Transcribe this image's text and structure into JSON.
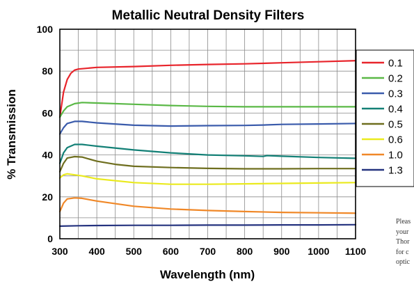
{
  "chart_data": {
    "type": "line",
    "title": "Metallic Neutral Density Filters",
    "xlabel": "Wavelength (nm)",
    "ylabel": "% Transmission",
    "xlim": [
      300,
      1100
    ],
    "ylim": [
      0,
      100
    ],
    "xticks": [
      300,
      400,
      500,
      600,
      700,
      800,
      900,
      1000,
      1100
    ],
    "yticks": [
      0,
      20,
      40,
      60,
      80,
      100
    ],
    "x_minor_step": 50,
    "y_minor_step": 10,
    "grid": true,
    "legend_position": "right",
    "series": [
      {
        "name": "0.1",
        "color": "#e8242b",
        "points": [
          [
            300,
            58
          ],
          [
            310,
            70
          ],
          [
            320,
            76
          ],
          [
            330,
            79
          ],
          [
            340,
            80.5
          ],
          [
            350,
            81
          ],
          [
            400,
            81.8
          ],
          [
            500,
            82.2
          ],
          [
            600,
            82.8
          ],
          [
            700,
            83.2
          ],
          [
            800,
            83.5
          ],
          [
            900,
            84
          ],
          [
            1000,
            84.5
          ],
          [
            1100,
            85
          ]
        ]
      },
      {
        "name": "0.2",
        "color": "#5ab846",
        "points": [
          [
            300,
            58
          ],
          [
            310,
            61
          ],
          [
            320,
            63
          ],
          [
            340,
            64.5
          ],
          [
            360,
            65
          ],
          [
            400,
            64.8
          ],
          [
            500,
            64.2
          ],
          [
            600,
            63.6
          ],
          [
            700,
            63.2
          ],
          [
            800,
            63
          ],
          [
            900,
            63
          ],
          [
            1000,
            63
          ],
          [
            1100,
            63
          ]
        ]
      },
      {
        "name": "0.3",
        "color": "#3a5bab",
        "points": [
          [
            300,
            50
          ],
          [
            310,
            53
          ],
          [
            320,
            55
          ],
          [
            340,
            56
          ],
          [
            360,
            56
          ],
          [
            400,
            55.3
          ],
          [
            500,
            54.2
          ],
          [
            600,
            53.8
          ],
          [
            700,
            54
          ],
          [
            800,
            54.1
          ],
          [
            850,
            54.3
          ],
          [
            900,
            54.6
          ],
          [
            1000,
            54.8
          ],
          [
            1100,
            55
          ]
        ]
      },
      {
        "name": "0.4",
        "color": "#138076",
        "points": [
          [
            300,
            36
          ],
          [
            310,
            41
          ],
          [
            320,
            43.5
          ],
          [
            340,
            45
          ],
          [
            360,
            45
          ],
          [
            400,
            44.2
          ],
          [
            500,
            42.4
          ],
          [
            600,
            41
          ],
          [
            700,
            40
          ],
          [
            800,
            39.6
          ],
          [
            850,
            39.3
          ],
          [
            860,
            39.7
          ],
          [
            900,
            39.4
          ],
          [
            1000,
            38.8
          ],
          [
            1100,
            38.4
          ]
        ]
      },
      {
        "name": "0.5",
        "color": "#6e6e1e",
        "points": [
          [
            300,
            32
          ],
          [
            310,
            36
          ],
          [
            320,
            38.5
          ],
          [
            340,
            39.2
          ],
          [
            360,
            39
          ],
          [
            400,
            37
          ],
          [
            450,
            35.5
          ],
          [
            500,
            34.6
          ],
          [
            600,
            34
          ],
          [
            700,
            33.6
          ],
          [
            800,
            33.4
          ],
          [
            900,
            33.4
          ],
          [
            1000,
            33.5
          ],
          [
            1100,
            33.5
          ]
        ]
      },
      {
        "name": "0.6",
        "color": "#eaea1e",
        "points": [
          [
            300,
            29
          ],
          [
            310,
            30.5
          ],
          [
            320,
            31
          ],
          [
            340,
            30.5
          ],
          [
            360,
            30
          ],
          [
            400,
            28.6
          ],
          [
            500,
            26.8
          ],
          [
            600,
            26
          ],
          [
            700,
            26
          ],
          [
            800,
            26.2
          ],
          [
            900,
            26.4
          ],
          [
            1000,
            26.6
          ],
          [
            1100,
            26.8
          ]
        ]
      },
      {
        "name": "1.0",
        "color": "#f08828",
        "points": [
          [
            300,
            13
          ],
          [
            310,
            17
          ],
          [
            320,
            19
          ],
          [
            340,
            19.5
          ],
          [
            360,
            19.3
          ],
          [
            400,
            18
          ],
          [
            500,
            15.5
          ],
          [
            600,
            14.2
          ],
          [
            700,
            13.5
          ],
          [
            800,
            13
          ],
          [
            900,
            12.6
          ],
          [
            1000,
            12.4
          ],
          [
            1100,
            12.2
          ]
        ]
      },
      {
        "name": "1.3",
        "color": "#25337f",
        "points": [
          [
            300,
            6
          ],
          [
            350,
            6.2
          ],
          [
            400,
            6.3
          ],
          [
            500,
            6.4
          ],
          [
            600,
            6.4
          ],
          [
            700,
            6.5
          ],
          [
            800,
            6.5
          ],
          [
            900,
            6.6
          ],
          [
            1000,
            6.6
          ],
          [
            1100,
            6.7
          ]
        ]
      }
    ]
  },
  "side_note": [
    "Pleas",
    "your",
    "Thor",
    "for c",
    "optic"
  ]
}
